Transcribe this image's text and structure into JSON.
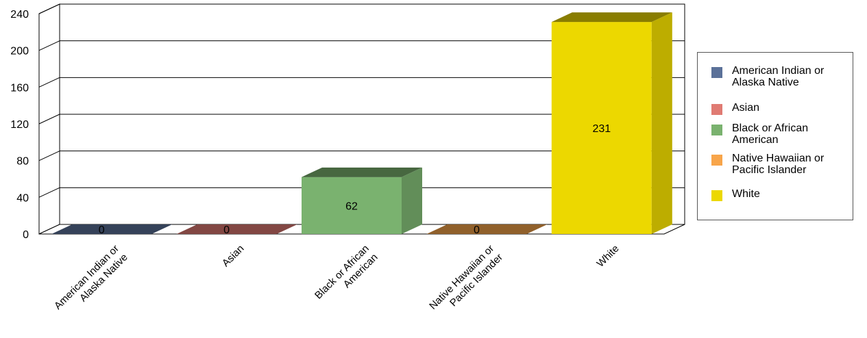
{
  "chart_data": {
    "type": "bar",
    "categories": [
      "American Indian or Alaska Native",
      "Asian",
      "Black or African American",
      "Native Hawaiian or Pacific Islander",
      "White"
    ],
    "values": [
      0,
      0,
      62,
      0,
      231
    ],
    "data_labels": [
      "0",
      "0",
      "62",
      "0",
      "231"
    ],
    "ylim": [
      0,
      240
    ],
    "yticks": [
      0,
      40,
      80,
      120,
      160,
      200,
      240
    ],
    "ytick_labels": [
      "0",
      "40",
      "80",
      "120",
      "160",
      "200",
      "240"
    ],
    "grid": true,
    "three_d": true,
    "legend_position": "right",
    "colors": [
      "#5b7199",
      "#e07b73",
      "#7ab26f",
      "#f8a54a",
      "#ecd800"
    ],
    "x_label_lines": [
      [
        "American Indian or",
        "Alaska Native"
      ],
      [
        "Asian"
      ],
      [
        "Black or African",
        "American"
      ],
      [
        "Native Hawaiian or",
        "Pacific Islander"
      ],
      [
        "White"
      ]
    ]
  },
  "legend": {
    "items": [
      {
        "lines": [
          "American Indian or",
          "Alaska Native"
        ],
        "color": "#5b7199"
      },
      {
        "lines": [
          "Asian"
        ],
        "color": "#e07b73"
      },
      {
        "lines": [
          "Black or African",
          "American"
        ],
        "color": "#7ab26f"
      },
      {
        "lines": [
          "Native Hawaiian or",
          "Pacific Islander"
        ],
        "color": "#f8a54a"
      },
      {
        "lines": [
          "White"
        ],
        "color": "#ecd800"
      }
    ]
  }
}
